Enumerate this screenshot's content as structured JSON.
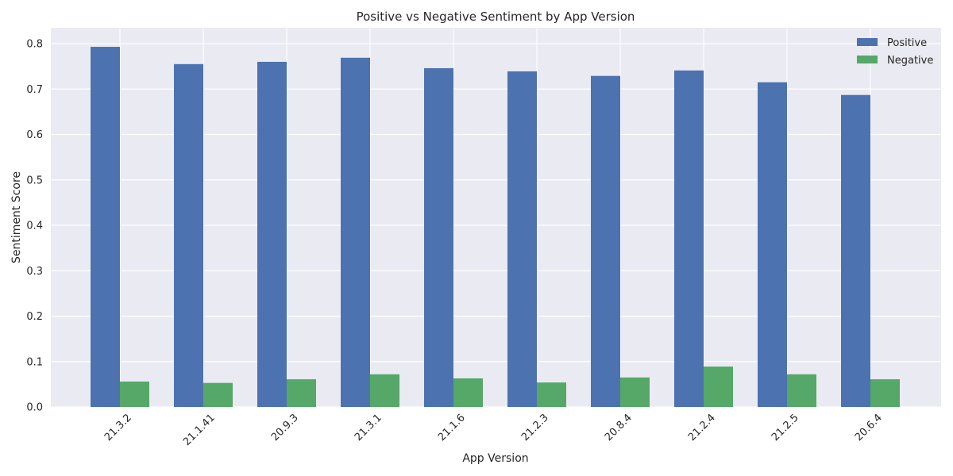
{
  "chart_data": {
    "type": "bar",
    "title": "Positive vs Negative Sentiment by App Version",
    "xlabel": "App Version",
    "ylabel": "Sentiment Score",
    "categories": [
      "21.3.2",
      "21.1.41",
      "20.9.3",
      "21.3.1",
      "21.1.6",
      "21.2.3",
      "20.8.4",
      "21.2.4",
      "21.2.5",
      "20.6.4"
    ],
    "series": [
      {
        "name": "Positive",
        "color": "#4c72b0",
        "values": [
          0.793,
          0.755,
          0.76,
          0.769,
          0.746,
          0.739,
          0.729,
          0.741,
          0.715,
          0.687
        ]
      },
      {
        "name": "Negative",
        "color": "#55a868",
        "values": [
          0.056,
          0.053,
          0.061,
          0.072,
          0.063,
          0.054,
          0.065,
          0.089,
          0.072,
          0.061
        ]
      }
    ],
    "ylim": [
      0,
      0.835
    ],
    "yticks": [
      "0.0",
      "0.1",
      "0.2",
      "0.3",
      "0.4",
      "0.5",
      "0.6",
      "0.7",
      "0.8"
    ],
    "grid": true,
    "legend": "top-right",
    "background": "#eaeaf2"
  }
}
